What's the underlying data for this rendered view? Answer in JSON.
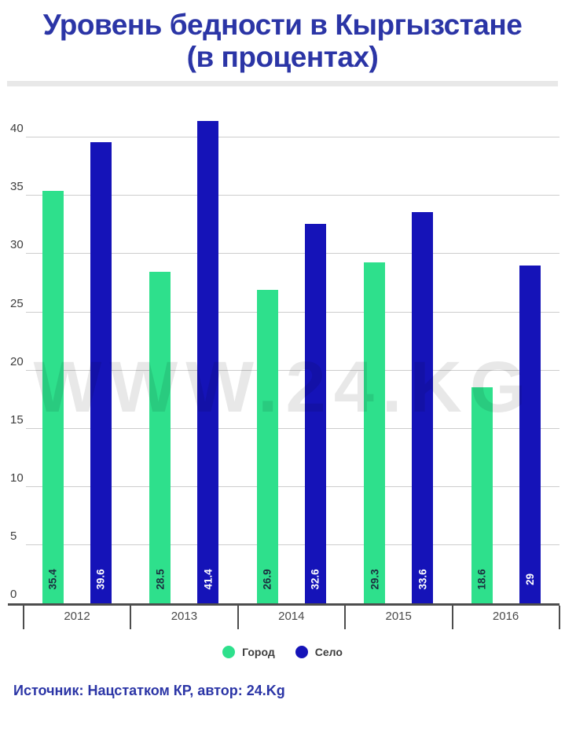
{
  "title": {
    "line1": "Уровень бедности в Кыргызстане",
    "line2": "(в процентах)"
  },
  "watermark": "WWW.24.KG",
  "source": "Источник: Нацстатком КР, автор: 24.Kg",
  "colors": {
    "title": "#2b35a6",
    "source": "#2b35a6",
    "watermark": "rgba(0,0,0,0.09)",
    "gridline": "#cdcdcd",
    "axis": "#4d4d4d"
  },
  "chart_data": {
    "type": "bar",
    "title": "Уровень бедности в Кыргызстане (в процентах)",
    "categories": [
      "2012",
      "2013",
      "2014",
      "2015",
      "2016"
    ],
    "series": [
      {
        "name": "Город",
        "color": "#2ee08c",
        "label_color": "#1c2d3f",
        "values": [
          35.4,
          28.5,
          26.9,
          29.3,
          18.6
        ]
      },
      {
        "name": "Село",
        "color": "#1513b8",
        "label_color": "#ffffff",
        "values": [
          39.6,
          41.4,
          32.6,
          33.6,
          29
        ]
      }
    ],
    "y_ticks": [
      0,
      5,
      10,
      15,
      20,
      25,
      30,
      35,
      40
    ],
    "ylim": [
      0,
      41.4
    ],
    "xlabel": "",
    "ylabel": "",
    "grid": true,
    "legend_position": "bottom",
    "value_labels": "rotated-90-inside-bar-bottom"
  }
}
